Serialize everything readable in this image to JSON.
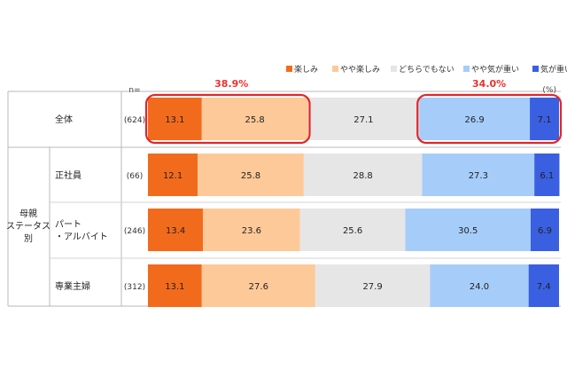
{
  "chart_data": {
    "type": "bar",
    "orientation": "horizontal",
    "stacked": true,
    "unit_label": "(%)",
    "n_label": "n=",
    "legend_position": "top-right",
    "grid": false,
    "xlim": [
      0,
      100
    ],
    "series": [
      {
        "name": "楽しみ",
        "color": "#f26b1d",
        "values": [
          13.1,
          12.1,
          13.4,
          13.1
        ]
      },
      {
        "name": "やや楽しみ",
        "color": "#fdc998",
        "values": [
          25.8,
          25.8,
          23.6,
          27.6
        ]
      },
      {
        "name": "どちらでもない",
        "color": "#e6e6e6",
        "values": [
          27.1,
          28.8,
          25.6,
          27.9
        ]
      },
      {
        "name": "やや気が重い",
        "color": "#a6cdfa",
        "values": [
          26.9,
          27.3,
          30.5,
          24.0
        ]
      },
      {
        "name": "気が重い",
        "color": "#3a5fe0",
        "values": [
          7.1,
          6.1,
          6.9,
          7.4
        ]
      }
    ],
    "rows": [
      {
        "label": "全体",
        "n": "(624)",
        "labels": [
          "13.1",
          "25.8",
          "27.1",
          "26.9",
          "7.1"
        ]
      },
      {
        "label": "正社員",
        "n": "(66)",
        "labels": [
          "12.1",
          "25.8",
          "28.8",
          "27.3",
          "6.1"
        ]
      },
      {
        "label": "パート\n・アルバイト",
        "n": "(246)",
        "labels": [
          "13.4",
          "23.6",
          "25.6",
          "30.5",
          "6.9"
        ]
      },
      {
        "label": "専業主婦",
        "n": "(312)",
        "labels": [
          "13.1",
          "27.6",
          "27.9",
          "24.0",
          "7.4"
        ]
      }
    ],
    "group_label": "母親\nステータス\n別",
    "annotations": [
      {
        "text": "38.9%",
        "color": "#e8332e"
      },
      {
        "text": "34.0%",
        "color": "#e8332e"
      }
    ]
  }
}
